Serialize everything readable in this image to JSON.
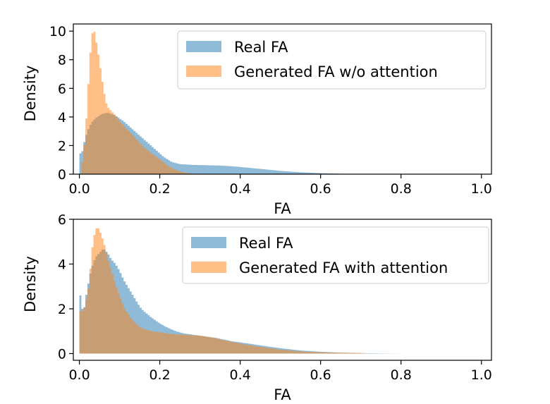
{
  "chart_data": [
    {
      "type": "histogram",
      "xlabel": "FA",
      "ylabel": "Density",
      "xlim": [
        0.0,
        1.0
      ],
      "ylim": [
        0,
        10.5
      ],
      "xticks": [
        "0.0",
        "0.2",
        "0.4",
        "0.6",
        "0.8",
        "1.0"
      ],
      "yticks": [
        "0",
        "2",
        "4",
        "6",
        "8",
        "10"
      ],
      "legend_position": "upper-right",
      "grid": false,
      "series": [
        {
          "name": "Real FA",
          "color": "#1f77b4",
          "profile": [
            [
              0.0,
              1.7
            ],
            [
              0.005,
              1.2
            ],
            [
              0.01,
              2.0
            ],
            [
              0.02,
              3.0
            ],
            [
              0.03,
              3.6
            ],
            [
              0.04,
              3.9
            ],
            [
              0.055,
              4.2
            ],
            [
              0.07,
              4.3
            ],
            [
              0.09,
              4.1
            ],
            [
              0.11,
              3.7
            ],
            [
              0.13,
              3.2
            ],
            [
              0.15,
              2.7
            ],
            [
              0.17,
              2.2
            ],
            [
              0.19,
              1.7
            ],
            [
              0.21,
              1.2
            ],
            [
              0.23,
              0.85
            ],
            [
              0.25,
              0.7
            ],
            [
              0.28,
              0.65
            ],
            [
              0.32,
              0.62
            ],
            [
              0.35,
              0.6
            ],
            [
              0.38,
              0.55
            ],
            [
              0.42,
              0.45
            ],
            [
              0.46,
              0.34
            ],
            [
              0.5,
              0.23
            ],
            [
              0.55,
              0.13
            ],
            [
              0.6,
              0.07
            ],
            [
              0.65,
              0.03
            ],
            [
              0.7,
              0.01
            ],
            [
              0.75,
              0.0
            ],
            [
              1.0,
              0.0
            ]
          ]
        },
        {
          "name": "Generated FA w/o attention",
          "color": "#ff7f0e",
          "profile": [
            [
              0.0,
              0.0
            ],
            [
              0.0025,
              0.0
            ],
            [
              0.005,
              0.4
            ],
            [
              0.01,
              1.3
            ],
            [
              0.015,
              2.8
            ],
            [
              0.02,
              5.0
            ],
            [
              0.025,
              7.6
            ],
            [
              0.03,
              9.4
            ],
            [
              0.035,
              10.3
            ],
            [
              0.04,
              9.6
            ],
            [
              0.045,
              8.8
            ],
            [
              0.05,
              7.9
            ],
            [
              0.055,
              6.9
            ],
            [
              0.06,
              6.0
            ],
            [
              0.065,
              5.2
            ],
            [
              0.07,
              4.7
            ],
            [
              0.08,
              4.4
            ],
            [
              0.09,
              4.1
            ],
            [
              0.1,
              3.7
            ],
            [
              0.11,
              3.4
            ],
            [
              0.12,
              3.1
            ],
            [
              0.13,
              2.8
            ],
            [
              0.14,
              2.5
            ],
            [
              0.15,
              2.2
            ],
            [
              0.16,
              1.9
            ],
            [
              0.18,
              1.45
            ],
            [
              0.2,
              1.05
            ],
            [
              0.22,
              0.6
            ],
            [
              0.24,
              0.3
            ],
            [
              0.26,
              0.12
            ],
            [
              0.28,
              0.04
            ],
            [
              0.3,
              0.0
            ],
            [
              1.0,
              0.0
            ]
          ]
        }
      ]
    },
    {
      "type": "histogram",
      "xlabel": "FA",
      "ylabel": "Density",
      "xlim": [
        0.0,
        1.0
      ],
      "ylim": [
        -0.3,
        6.0
      ],
      "xticks": [
        "0.0",
        "0.2",
        "0.4",
        "0.6",
        "0.8",
        "1.0"
      ],
      "yticks": [
        "0",
        "2",
        "4",
        "6"
      ],
      "legend_position": "upper-right",
      "grid": false,
      "series": [
        {
          "name": "Real FA",
          "color": "#1f77b4",
          "profile": [
            [
              0.0,
              3.0
            ],
            [
              0.005,
              2.2
            ],
            [
              0.01,
              1.8
            ],
            [
              0.02,
              2.9
            ],
            [
              0.03,
              3.8
            ],
            [
              0.04,
              4.3
            ],
            [
              0.05,
              4.5
            ],
            [
              0.06,
              4.7
            ],
            [
              0.07,
              4.5
            ],
            [
              0.08,
              4.2
            ],
            [
              0.09,
              4.0
            ],
            [
              0.1,
              3.7
            ],
            [
              0.11,
              3.3
            ],
            [
              0.12,
              3.0
            ],
            [
              0.13,
              2.7
            ],
            [
              0.14,
              2.4
            ],
            [
              0.15,
              2.1
            ],
            [
              0.16,
              1.9
            ],
            [
              0.18,
              1.6
            ],
            [
              0.2,
              1.35
            ],
            [
              0.22,
              1.15
            ],
            [
              0.24,
              1.0
            ],
            [
              0.26,
              0.9
            ],
            [
              0.28,
              0.85
            ],
            [
              0.3,
              0.8
            ],
            [
              0.34,
              0.7
            ],
            [
              0.38,
              0.55
            ],
            [
              0.42,
              0.45
            ],
            [
              0.46,
              0.34
            ],
            [
              0.5,
              0.24
            ],
            [
              0.55,
              0.14
            ],
            [
              0.6,
              0.08
            ],
            [
              0.65,
              0.04
            ],
            [
              0.7,
              0.02
            ],
            [
              0.75,
              0.01
            ],
            [
              0.8,
              0.0
            ],
            [
              1.0,
              0.0
            ]
          ]
        },
        {
          "name": "Generated FA with attention",
          "color": "#ff7f0e",
          "profile": [
            [
              0.0,
              1.9
            ],
            [
              0.005,
              1.9
            ],
            [
              0.01,
              1.9
            ],
            [
              0.015,
              2.2
            ],
            [
              0.02,
              2.6
            ],
            [
              0.025,
              3.2
            ],
            [
              0.03,
              4.4
            ],
            [
              0.035,
              5.1
            ],
            [
              0.04,
              5.5
            ],
            [
              0.045,
              5.7
            ],
            [
              0.05,
              5.5
            ],
            [
              0.055,
              5.3
            ],
            [
              0.06,
              5.0
            ],
            [
              0.065,
              4.7
            ],
            [
              0.07,
              4.3
            ],
            [
              0.08,
              3.7
            ],
            [
              0.09,
              3.1
            ],
            [
              0.1,
              2.6
            ],
            [
              0.11,
              2.1
            ],
            [
              0.12,
              1.8
            ],
            [
              0.13,
              1.55
            ],
            [
              0.14,
              1.35
            ],
            [
              0.15,
              1.2
            ],
            [
              0.16,
              1.1
            ],
            [
              0.18,
              1.0
            ],
            [
              0.2,
              0.95
            ],
            [
              0.22,
              0.9
            ],
            [
              0.24,
              0.85
            ],
            [
              0.26,
              0.85
            ],
            [
              0.28,
              0.82
            ],
            [
              0.3,
              0.8
            ],
            [
              0.33,
              0.72
            ],
            [
              0.36,
              0.6
            ],
            [
              0.4,
              0.45
            ],
            [
              0.45,
              0.3
            ],
            [
              0.5,
              0.18
            ],
            [
              0.55,
              0.1
            ],
            [
              0.6,
              0.06
            ],
            [
              0.65,
              0.04
            ],
            [
              0.7,
              0.03
            ],
            [
              0.715,
              0.0
            ],
            [
              1.0,
              0.0
            ]
          ]
        }
      ]
    }
  ]
}
